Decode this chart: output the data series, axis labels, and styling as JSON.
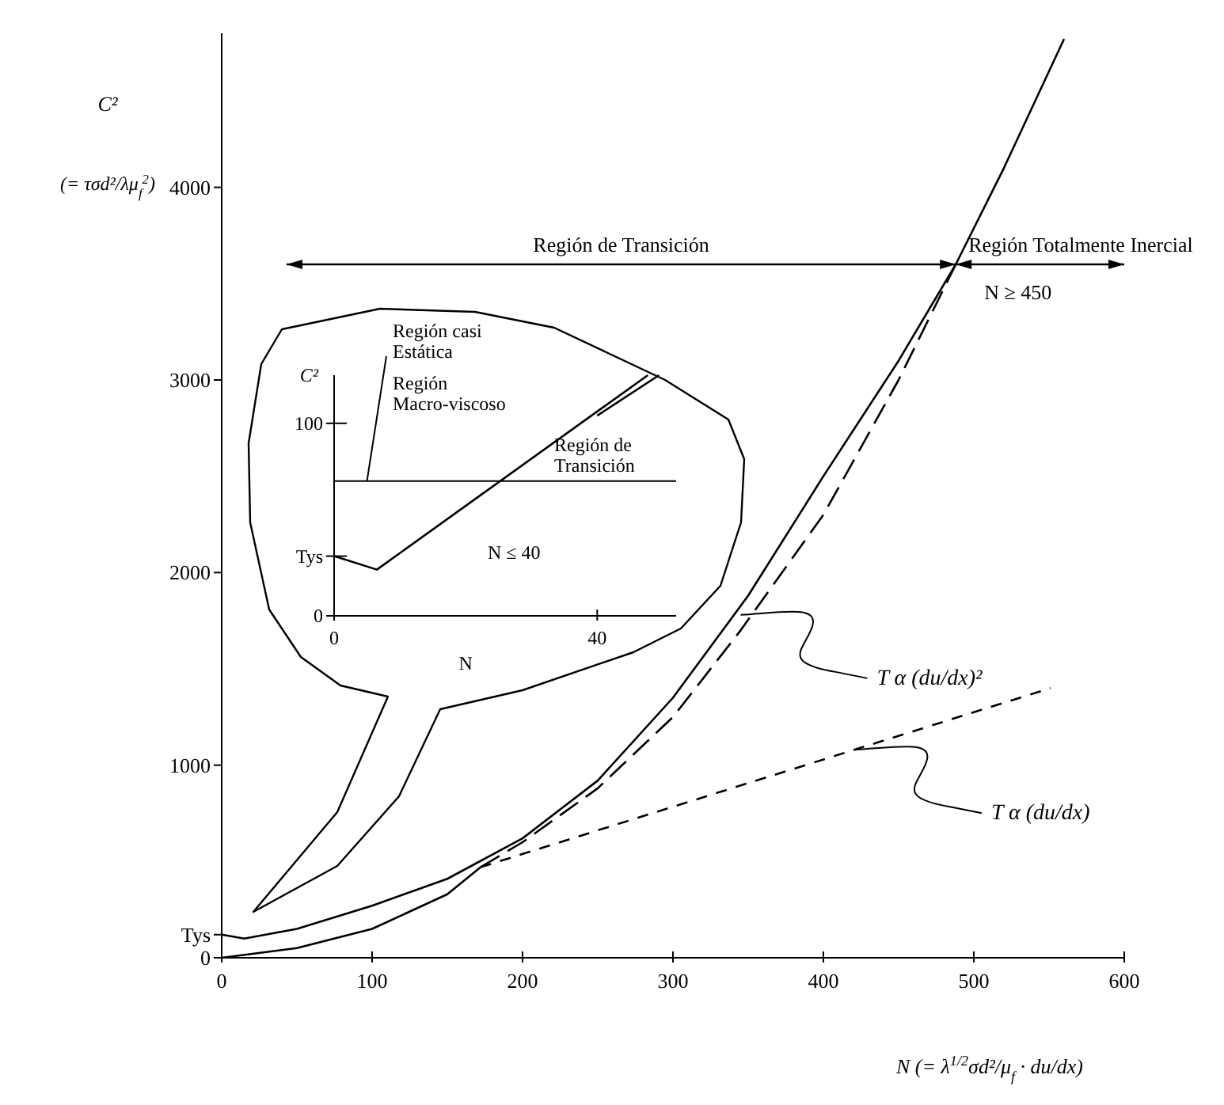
{
  "chart_data": [
    {
      "type": "line",
      "xlabel": "N (= λ$^{1/2}$σd²/μ$_{f}$ · du/dx)",
      "ylabel": "C² (= τσd²/λμ$_{f}$$^{2}$)",
      "xlim": [
        0,
        600
      ],
      "ylim": [
        0,
        4800
      ],
      "xticks": [
        0,
        100,
        200,
        300,
        400,
        500,
        600
      ],
      "yticks": [
        0,
        {
          "value": 120,
          "label": "Tys"
        },
        1000,
        2000,
        3000,
        4000
      ],
      "marker": "none",
      "series": [
        {
          "color": "#000000",
          "line_style": "solid",
          "x": [
            0,
            15,
            50,
            100,
            150,
            200,
            250,
            300,
            350,
            400,
            450,
            488,
            520,
            560
          ],
          "values": [
            120,
            100,
            150,
            270,
            410,
            620,
            920,
            1350,
            1880,
            2500,
            3100,
            3600,
            4100,
            4770
          ]
        },
        {
          "color": "#000000",
          "line_style": "solid",
          "x": [
            0,
            50,
            100,
            150,
            172
          ],
          "values": [
            0,
            50,
            150,
            330,
            470
          ]
        },
        {
          "color": "#000000",
          "line_style": "dashed",
          "x": [
            172,
            200,
            250,
            300,
            345,
            400,
            450,
            488
          ],
          "values": [
            470,
            600,
            880,
            1250,
            1700,
            2300,
            3000,
            3600
          ]
        },
        {
          "color": "#000000",
          "line_style": "dotted",
          "x": [
            172,
            551
          ],
          "values": [
            470,
            1400
          ]
        }
      ],
      "annotations": [
        "Región de Transición",
        "Región Totalmente Inercial",
        "N ≥ 450",
        {
          "text": "T α (du/dx)²",
          "x": 345,
          "y": 1780
        },
        {
          "text": "T α (du/dx)",
          "x": 421,
          "y": 1080
        }
      ]
    },
    {
      "type": "line",
      "xlabel": "N",
      "ylabel": "C²",
      "xlim": [
        0,
        52
      ],
      "ylim": [
        0,
        125
      ],
      "xticks": [
        0,
        40
      ],
      "yticks": [
        0,
        {
          "value": 31,
          "label": "Tys"
        },
        100
      ],
      "marker": "none",
      "series": [
        {
          "color": "#000000",
          "line_style": "solid",
          "x": [
            0,
            6.5,
            47.7
          ],
          "values": [
            31,
            24,
            125
          ]
        },
        {
          "color": "#000000",
          "line_style": "solid",
          "x": [
            40,
            49.4
          ],
          "values": [
            104,
            125
          ]
        }
      ],
      "ref_lines": [
        {
          "axis": "y",
          "value": 70
        }
      ],
      "annotations": [
        {
          "text": "Región casi Estática",
          "x": 5,
          "y": 70
        },
        "Región Macro-viscoso",
        "Región de Transición",
        "N ≤ 40"
      ]
    }
  ]
}
